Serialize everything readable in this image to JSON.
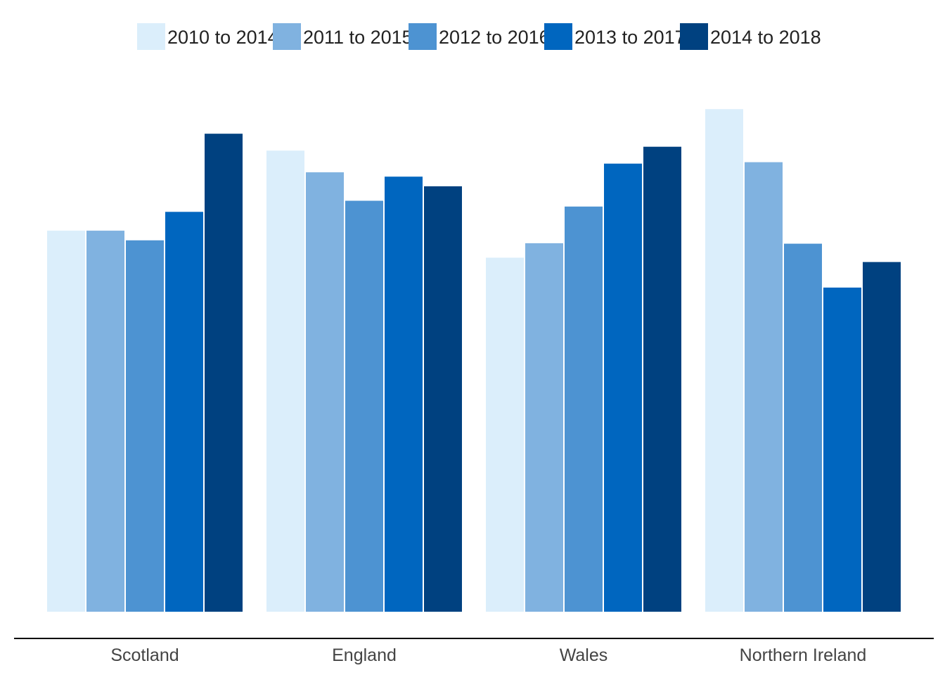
{
  "chart_data": {
    "type": "bar",
    "title": "",
    "xlabel": "",
    "ylabel": "",
    "ylim": [
      0,
      100
    ],
    "grid": false,
    "y_axis_shown": false,
    "legend_position": "top",
    "categories": [
      "Scotland",
      "England",
      "Wales",
      "Northern Ireland"
    ],
    "series": [
      {
        "name": "2010 to 2014",
        "color": "#dbeefb",
        "values": [
          79.0,
          95.6,
          73.4,
          104.2
        ]
      },
      {
        "name": "2011 to 2015",
        "color": "#80b2e0",
        "values": [
          79.0,
          91.1,
          76.4,
          93.2
        ]
      },
      {
        "name": "2012 to 2016",
        "color": "#4d93d2",
        "values": [
          77.0,
          85.2,
          84.0,
          76.3
        ]
      },
      {
        "name": "2013 to 2017",
        "color": "#0066bf",
        "values": [
          82.9,
          90.2,
          92.9,
          67.2
        ]
      },
      {
        "name": "2014 to 2018",
        "color": "#004180",
        "values": [
          99.1,
          88.2,
          96.4,
          72.5
        ]
      }
    ]
  }
}
